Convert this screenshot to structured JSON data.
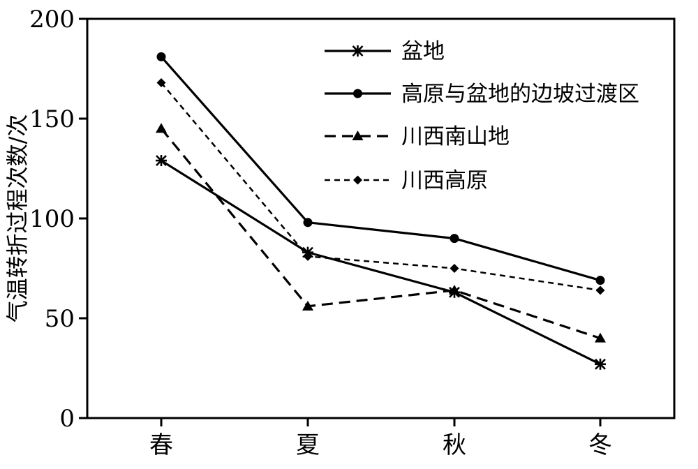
{
  "chart_data": {
    "type": "line",
    "categories": [
      "春",
      "夏",
      "秋",
      "冬"
    ],
    "ylabel": "气温转折过程次数/次",
    "ylim": [
      0,
      200
    ],
    "yticks": [
      0,
      50,
      100,
      150,
      200
    ],
    "grid": false,
    "legend_position": "top-right",
    "series": [
      {
        "name": "盆地",
        "values": [
          129,
          83,
          63,
          27
        ],
        "line_style": "solid",
        "marker": "asterisk",
        "color": "#000000"
      },
      {
        "name": "高原与盆地的边坡过渡区",
        "values": [
          181,
          98,
          90,
          69
        ],
        "line_style": "solid",
        "marker": "circle",
        "color": "#000000"
      },
      {
        "name": "川西南山地",
        "values": [
          145,
          56,
          64,
          40
        ],
        "line_style": "dashed",
        "marker": "triangle",
        "color": "#000000"
      },
      {
        "name": "川西高原",
        "values": [
          168,
          81,
          75,
          64
        ],
        "line_style": "dotted",
        "marker": "diamond",
        "color": "#000000"
      }
    ]
  }
}
